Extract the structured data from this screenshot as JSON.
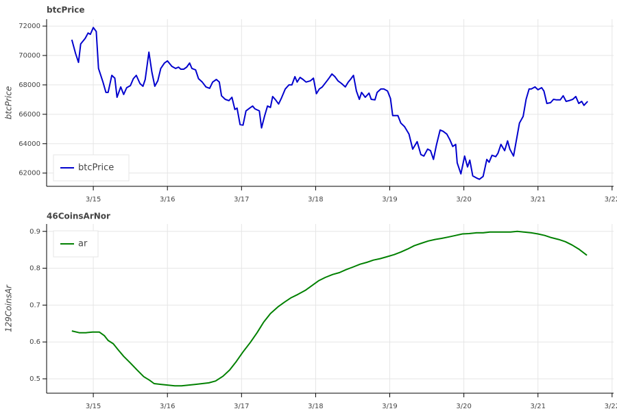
{
  "chart_data": [
    {
      "type": "line",
      "title": "btcPrice",
      "ylabel": "btcPrice",
      "x": [
        14.71,
        14.76,
        14.8,
        14.83,
        14.89,
        14.93,
        14.96,
        15.0,
        15.04,
        15.07,
        15.13,
        15.17,
        15.2,
        15.25,
        15.29,
        15.32,
        15.37,
        15.41,
        15.45,
        15.5,
        15.54,
        15.58,
        15.63,
        15.67,
        15.7,
        15.75,
        15.79,
        15.83,
        15.87,
        15.91,
        15.96,
        16.0,
        16.06,
        16.11,
        16.15,
        16.18,
        16.22,
        16.26,
        16.3,
        16.33,
        16.38,
        16.42,
        16.47,
        16.52,
        16.57,
        16.61,
        16.66,
        16.7,
        16.73,
        16.78,
        16.83,
        16.87,
        16.91,
        16.94,
        16.98,
        17.02,
        17.06,
        17.11,
        17.15,
        17.18,
        17.24,
        17.27,
        17.31,
        17.35,
        17.39,
        17.42,
        17.46,
        17.5,
        17.54,
        17.59,
        17.64,
        17.68,
        17.72,
        17.75,
        17.79,
        17.83,
        17.87,
        17.93,
        17.97,
        18.01,
        18.05,
        18.09,
        18.14,
        18.18,
        18.22,
        18.26,
        18.3,
        18.35,
        18.4,
        18.44,
        18.47,
        18.51,
        18.55,
        18.59,
        18.62,
        18.67,
        18.72,
        18.75,
        18.8,
        18.83,
        18.88,
        18.92,
        18.97,
        19.01,
        19.04,
        19.11,
        19.15,
        19.2,
        19.26,
        19.31,
        19.37,
        19.42,
        19.46,
        19.51,
        19.55,
        19.59,
        19.63,
        19.68,
        19.72,
        19.77,
        19.81,
        19.85,
        19.89,
        19.91,
        19.96,
        20.01,
        20.05,
        20.08,
        20.12,
        20.17,
        20.21,
        20.26,
        20.31,
        20.34,
        20.38,
        20.43,
        20.46,
        20.5,
        20.55,
        20.59,
        20.62,
        20.67,
        20.71,
        20.75,
        20.8,
        20.84,
        20.88,
        20.91,
        20.96,
        21.0,
        21.05,
        21.08,
        21.12,
        21.17,
        21.21,
        21.25,
        21.3,
        21.34,
        21.38,
        21.42,
        21.47,
        21.51,
        21.55,
        21.59,
        21.62,
        21.67
      ],
      "series": [
        {
          "name": "btcPrice",
          "color": "#0000cd",
          "values": [
            71070,
            70140,
            69530,
            70790,
            71160,
            71530,
            71440,
            71900,
            71630,
            69120,
            68190,
            67490,
            67490,
            68650,
            68460,
            67160,
            67860,
            67350,
            67810,
            67950,
            68420,
            68650,
            68090,
            67910,
            68370,
            70230,
            68880,
            67910,
            68280,
            69120,
            69490,
            69630,
            69260,
            69120,
            69210,
            69070,
            69070,
            69210,
            69490,
            69120,
            69020,
            68420,
            68190,
            67860,
            67770,
            68190,
            68370,
            68190,
            67260,
            67020,
            66930,
            67160,
            66330,
            66420,
            65300,
            65260,
            66230,
            66420,
            66560,
            66370,
            66230,
            65070,
            65860,
            66560,
            66470,
            67210,
            66980,
            66700,
            67120,
            67720,
            68000,
            68000,
            68560,
            68190,
            68510,
            68370,
            68190,
            68280,
            68460,
            67400,
            67720,
            67860,
            68190,
            68460,
            68740,
            68560,
            68280,
            68090,
            67860,
            68190,
            68370,
            68650,
            67580,
            67020,
            67490,
            67160,
            67440,
            67020,
            66980,
            67490,
            67720,
            67720,
            67580,
            67070,
            65910,
            65910,
            65400,
            65160,
            64650,
            63630,
            64140,
            63260,
            63160,
            63630,
            63530,
            62930,
            63910,
            64930,
            64840,
            64650,
            64280,
            63810,
            63950,
            62700,
            61950,
            63160,
            62420,
            62880,
            61810,
            61670,
            61580,
            61770,
            62930,
            62740,
            63210,
            63120,
            63350,
            63950,
            63530,
            64190,
            63630,
            63160,
            64280,
            65400,
            65860,
            67020,
            67720,
            67720,
            67860,
            67670,
            67810,
            67580,
            66740,
            66790,
            67020,
            66980,
            66980,
            67260,
            66880,
            66930,
            67020,
            67210,
            66740,
            66880,
            66610,
            66880
          ]
        }
      ],
      "xlim": [
        14.37,
        22.02
      ],
      "ylim": [
        61100,
        72470
      ],
      "xticks": [
        {
          "value": 15,
          "label": "3/15"
        },
        {
          "value": 16,
          "label": "3/16"
        },
        {
          "value": 17,
          "label": "3/17"
        },
        {
          "value": 18,
          "label": "3/18"
        },
        {
          "value": 19,
          "label": "3/19"
        },
        {
          "value": 20,
          "label": "3/20"
        },
        {
          "value": 21,
          "label": "3/21"
        },
        {
          "value": 22,
          "label": "3/22"
        }
      ],
      "yticks": [
        62000,
        64000,
        66000,
        68000,
        70000,
        72000
      ],
      "grid": true,
      "legend": "bottom_left"
    },
    {
      "type": "line",
      "title": "46CoinsArNor",
      "ylabel": "129CoinsAr",
      "x": [
        14.71,
        14.81,
        14.9,
        14.99,
        15.08,
        15.15,
        15.2,
        15.27,
        15.33,
        15.41,
        15.5,
        15.59,
        15.68,
        15.76,
        15.82,
        15.91,
        16.01,
        16.1,
        16.19,
        16.28,
        16.38,
        16.47,
        16.56,
        16.65,
        16.75,
        16.84,
        16.93,
        17.02,
        17.12,
        17.21,
        17.3,
        17.39,
        17.49,
        17.58,
        17.67,
        17.76,
        17.86,
        17.95,
        18.04,
        18.13,
        18.23,
        18.32,
        18.41,
        18.5,
        18.6,
        18.69,
        18.78,
        18.87,
        18.96,
        19.06,
        19.15,
        19.24,
        19.33,
        19.43,
        19.52,
        19.61,
        19.7,
        19.8,
        19.89,
        19.98,
        20.07,
        20.17,
        20.26,
        20.35,
        20.44,
        20.54,
        20.63,
        20.72,
        20.81,
        20.91,
        21.0,
        21.09,
        21.18,
        21.28,
        21.37,
        21.46,
        21.55,
        21.66
      ],
      "series": [
        {
          "name": "ar",
          "color": "#008000",
          "values": [
            0.63,
            0.625,
            0.625,
            0.627,
            0.627,
            0.617,
            0.604,
            0.595,
            0.58,
            0.561,
            0.543,
            0.524,
            0.506,
            0.496,
            0.487,
            0.485,
            0.483,
            0.481,
            0.481,
            0.483,
            0.485,
            0.487,
            0.489,
            0.494,
            0.507,
            0.524,
            0.547,
            0.573,
            0.599,
            0.625,
            0.654,
            0.677,
            0.695,
            0.708,
            0.72,
            0.729,
            0.74,
            0.753,
            0.766,
            0.775,
            0.783,
            0.788,
            0.796,
            0.803,
            0.811,
            0.816,
            0.822,
            0.826,
            0.831,
            0.837,
            0.844,
            0.852,
            0.861,
            0.868,
            0.874,
            0.878,
            0.881,
            0.885,
            0.889,
            0.893,
            0.894,
            0.896,
            0.896,
            0.898,
            0.898,
            0.898,
            0.898,
            0.9,
            0.898,
            0.896,
            0.893,
            0.889,
            0.883,
            0.878,
            0.872,
            0.863,
            0.852,
            0.835
          ]
        }
      ],
      "xlim": [
        14.37,
        22.02
      ],
      "ylim": [
        0.461,
        0.92
      ],
      "xticks": [
        {
          "value": 15,
          "label": "3/15"
        },
        {
          "value": 16,
          "label": "3/16"
        },
        {
          "value": 17,
          "label": "3/17"
        },
        {
          "value": 18,
          "label": "3/18"
        },
        {
          "value": 19,
          "label": "3/19"
        },
        {
          "value": 20,
          "label": "3/20"
        },
        {
          "value": 21,
          "label": "3/21"
        },
        {
          "value": 22,
          "label": "3/22"
        }
      ],
      "yticks": [
        0.5,
        0.6,
        0.7,
        0.8,
        0.9
      ],
      "grid": true,
      "legend": "top_left"
    }
  ]
}
